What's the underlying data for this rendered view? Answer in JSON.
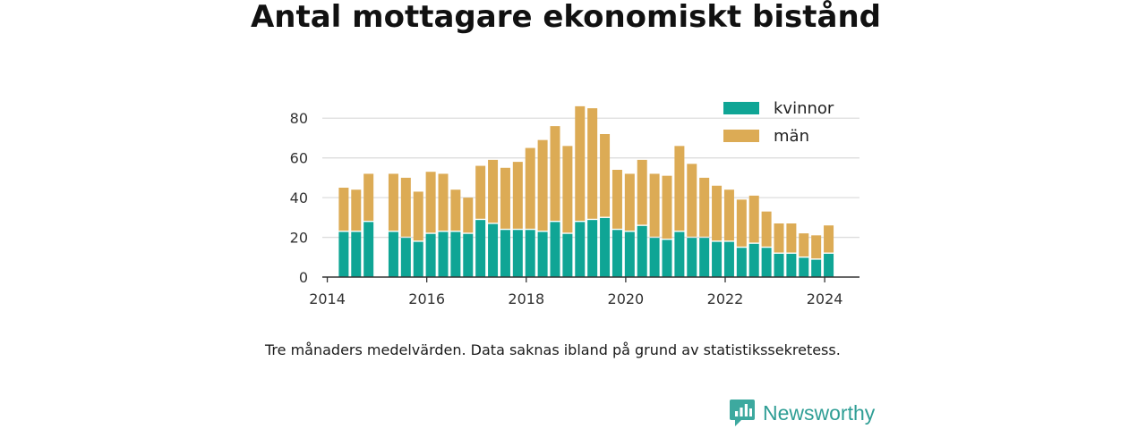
{
  "title": "Antal mottagare ekonomiskt bistånd",
  "caption": "Tre månaders medelvärden. Data saknas ibland på grund av statistikssekretess.",
  "brand": {
    "name": "Newsworthy",
    "color": "#2f9e95"
  },
  "colors": {
    "kvinnor": "#0fa595",
    "man": "#dcab55",
    "grid": "#dddddd",
    "axis": "#333333"
  },
  "chart_data": {
    "type": "bar",
    "stacked": true,
    "title": "Antal mottagare ekonomiskt bistånd",
    "xlabel": "",
    "ylabel": "",
    "ylim": [
      0,
      90
    ],
    "yticks": [
      0,
      20,
      40,
      60,
      80
    ],
    "xlim": [
      2013.9,
      2024.7
    ],
    "xticks": [
      2014,
      2016,
      2018,
      2020,
      2022,
      2024
    ],
    "grid": true,
    "legend_position": "top-right",
    "x": [
      2014.33,
      2014.58,
      2014.83,
      2015.33,
      2015.58,
      2015.83,
      2016.08,
      2016.33,
      2016.58,
      2016.83,
      2017.08,
      2017.33,
      2017.58,
      2017.83,
      2018.08,
      2018.33,
      2018.58,
      2018.83,
      2019.08,
      2019.33,
      2019.58,
      2019.83,
      2020.08,
      2020.33,
      2020.58,
      2020.83,
      2021.08,
      2021.33,
      2021.58,
      2021.83,
      2022.08,
      2022.33,
      2022.58,
      2022.83,
      2023.08,
      2023.33,
      2023.58,
      2023.83,
      2024.08
    ],
    "series": [
      {
        "name": "kvinnor",
        "values": [
          23,
          23,
          28,
          23,
          20,
          18,
          22,
          23,
          23,
          22,
          29,
          27,
          24,
          24,
          24,
          23,
          28,
          22,
          28,
          29,
          30,
          24,
          23,
          26,
          20,
          19,
          23,
          20,
          20,
          18,
          18,
          15,
          17,
          15,
          12,
          12,
          10,
          9,
          12
        ]
      },
      {
        "name": "män",
        "values": [
          22,
          21,
          24,
          29,
          30,
          25,
          31,
          29,
          21,
          18,
          27,
          32,
          31,
          34,
          41,
          46,
          48,
          44,
          58,
          56,
          42,
          30,
          29,
          33,
          32,
          32,
          43,
          37,
          30,
          28,
          26,
          24,
          24,
          18,
          15,
          15,
          12,
          12,
          14
        ]
      }
    ]
  }
}
